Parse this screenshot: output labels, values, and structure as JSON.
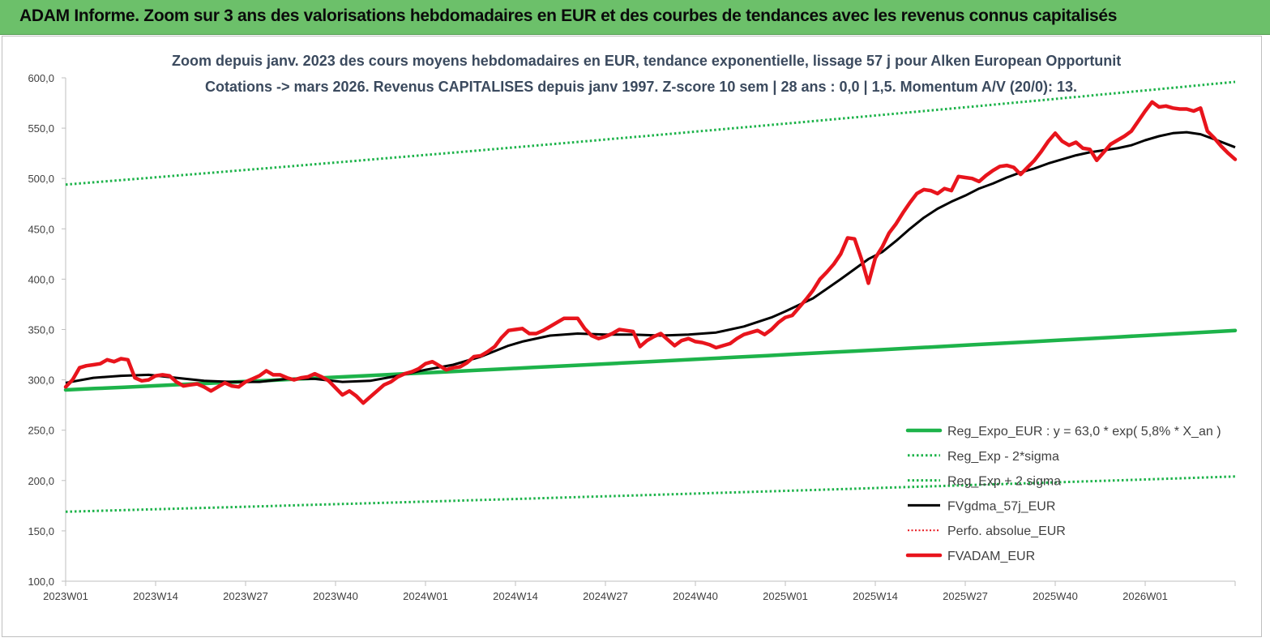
{
  "header": {
    "title": "ADAM Informe. Zoom sur 3 ans des valorisations hebdomadaires en EUR et des courbes de tendances avec les revenus connus capitalisés"
  },
  "colors": {
    "banner": "#6cc06a",
    "green": "#1db34a",
    "red": "#e8141c",
    "black": "#000000"
  },
  "chart_data": {
    "type": "line",
    "title_line1": "Zoom depuis janv. 2023 des cours moyens hebdomadaires en EUR, tendance exponentielle, lissage 57 j pour Alken European Opportunit",
    "title_line2": "Cotations -> mars 2026. Revenus CAPITALISES depuis janv 1997. Z-score 10 sem | 28 ans : 0,0 | 1,5. Momentum A/V (20/0): 13.",
    "ylim": [
      100,
      600
    ],
    "y_ticks": [
      "100,0",
      "150,0",
      "200,0",
      "250,0",
      "300,0",
      "350,0",
      "400,0",
      "450,0",
      "500,0",
      "550,0",
      "600,0"
    ],
    "y_tick_values": [
      100,
      150,
      200,
      250,
      300,
      350,
      400,
      450,
      500,
      550,
      600
    ],
    "x_range": [
      0,
      169
    ],
    "x_ticks": [
      "2023W01",
      "2023W14",
      "2023W27",
      "2023W40",
      "2024W01",
      "2024W14",
      "2024W27",
      "2024W40",
      "2025W01",
      "2025W14",
      "2025W27",
      "2025W40",
      "2026W01"
    ],
    "x_tick_positions": [
      0,
      13,
      26,
      39,
      52,
      65,
      78,
      91,
      104,
      117,
      130,
      143,
      156
    ],
    "series": [
      {
        "name": "Reg_Expo_EUR : y = 63,0 * exp( 5,8% *  X_an )",
        "style": "thick-solid",
        "color": "#1db34a",
        "x": [
          0,
          169
        ],
        "values": [
          290,
          349
        ]
      },
      {
        "name": "Reg_Exp - 2*sigma",
        "style": "dotted",
        "color": "#1db34a",
        "x": [
          0,
          169
        ],
        "values": [
          169,
          204
        ]
      },
      {
        "name": "Reg_Exp + 2 sigma",
        "style": "dotted",
        "color": "#1db34a",
        "x": [
          0,
          169
        ],
        "values": [
          494,
          596
        ]
      },
      {
        "name": "FVgdma_57j_EUR",
        "style": "solid",
        "color": "#000000",
        "x": [
          0,
          4,
          8,
          12,
          16,
          20,
          24,
          28,
          32,
          36,
          40,
          44,
          48,
          52,
          56,
          60,
          64,
          66,
          70,
          74,
          78,
          82,
          86,
          90,
          94,
          98,
          102,
          104,
          108,
          112,
          114,
          116,
          118,
          120,
          122,
          124,
          126,
          128,
          130,
          132,
          134,
          136,
          138,
          140,
          142,
          144,
          146,
          148,
          150,
          152,
          154,
          156,
          158,
          160,
          162,
          164,
          166,
          169
        ],
        "values": [
          297,
          302,
          304,
          305,
          302,
          299,
          298,
          298,
          301,
          301,
          298,
          299,
          304,
          310,
          315,
          323,
          334,
          338,
          344,
          346,
          345,
          345,
          344,
          345,
          347,
          353,
          362,
          368,
          381,
          400,
          410,
          420,
          427,
          438,
          450,
          461,
          470,
          477,
          483,
          490,
          495,
          501,
          506,
          510,
          515,
          519,
          523,
          526,
          528,
          530,
          533,
          538,
          542,
          545,
          546,
          544,
          539,
          531
        ]
      },
      {
        "name": "Perfo. absolue_EUR",
        "style": "red-dotted",
        "color": "#e8141c",
        "x": [],
        "values": []
      },
      {
        "name": "FVADAM_EUR",
        "style": "thick-solid",
        "color": "#e8141c",
        "x": [
          0,
          1,
          2,
          3,
          4,
          5,
          6,
          7,
          8,
          9,
          10,
          11,
          12,
          13,
          14,
          15,
          16,
          17,
          18,
          19,
          20,
          21,
          22,
          23,
          24,
          25,
          26,
          27,
          28,
          29,
          30,
          31,
          32,
          33,
          34,
          35,
          36,
          37,
          38,
          39,
          40,
          41,
          42,
          43,
          44,
          45,
          46,
          47,
          48,
          49,
          50,
          51,
          52,
          53,
          54,
          55,
          56,
          57,
          58,
          59,
          60,
          61,
          62,
          63,
          64,
          65,
          66,
          67,
          68,
          69,
          70,
          71,
          72,
          73,
          74,
          75,
          76,
          77,
          78,
          79,
          80,
          81,
          82,
          83,
          84,
          85,
          86,
          87,
          88,
          89,
          90,
          91,
          92,
          93,
          94,
          95,
          96,
          97,
          98,
          99,
          100,
          101,
          102,
          103,
          104,
          105,
          106,
          107,
          108,
          109,
          110,
          111,
          112,
          113,
          114,
          115,
          116,
          117,
          118,
          119,
          120,
          121,
          122,
          123,
          124,
          125,
          126,
          127,
          128,
          129,
          130,
          131,
          132,
          133,
          134,
          135,
          136,
          137,
          138,
          139,
          140,
          141,
          142,
          143,
          144,
          145,
          146,
          147,
          148,
          149,
          150,
          151,
          152,
          153,
          154,
          155,
          156,
          157,
          158,
          159,
          160,
          161,
          162,
          163,
          164,
          165,
          166,
          167,
          168,
          169
        ],
        "values": [
          293,
          300,
          312,
          314,
          315,
          316,
          320,
          318,
          321,
          320,
          302,
          299,
          300,
          304,
          305,
          304,
          298,
          294,
          295,
          296,
          293,
          289,
          293,
          297,
          294,
          293,
          298,
          301,
          304,
          309,
          305,
          305,
          302,
          300,
          302,
          303,
          306,
          303,
          299,
          292,
          285,
          289,
          284,
          277,
          283,
          289,
          295,
          298,
          303,
          306,
          308,
          311,
          316,
          318,
          314,
          310,
          312,
          313,
          317,
          323,
          324,
          328,
          333,
          342,
          349,
          350,
          351,
          346,
          346,
          349,
          353,
          357,
          361,
          361,
          361,
          351,
          344,
          341,
          343,
          346,
          350,
          349,
          348,
          333,
          339,
          343,
          346,
          340,
          334,
          339,
          341,
          338,
          337,
          335,
          332,
          334,
          336,
          341,
          345,
          347,
          349,
          345,
          350,
          357,
          362,
          364,
          372,
          380,
          389,
          400,
          407,
          415,
          425,
          441,
          440,
          420,
          396,
          421,
          432,
          446,
          455,
          466,
          476,
          485,
          489,
          488,
          485,
          490,
          488,
          502,
          501,
          500,
          497,
          503,
          508,
          512,
          513,
          511,
          504,
          511,
          518,
          527,
          537,
          545,
          537,
          533,
          536,
          530,
          529,
          518,
          526,
          534,
          538,
          542,
          547,
          557,
          567,
          576,
          571,
          572,
          570,
          569,
          569,
          567,
          570,
          547,
          540,
          532,
          525,
          519
        ]
      }
    ]
  }
}
